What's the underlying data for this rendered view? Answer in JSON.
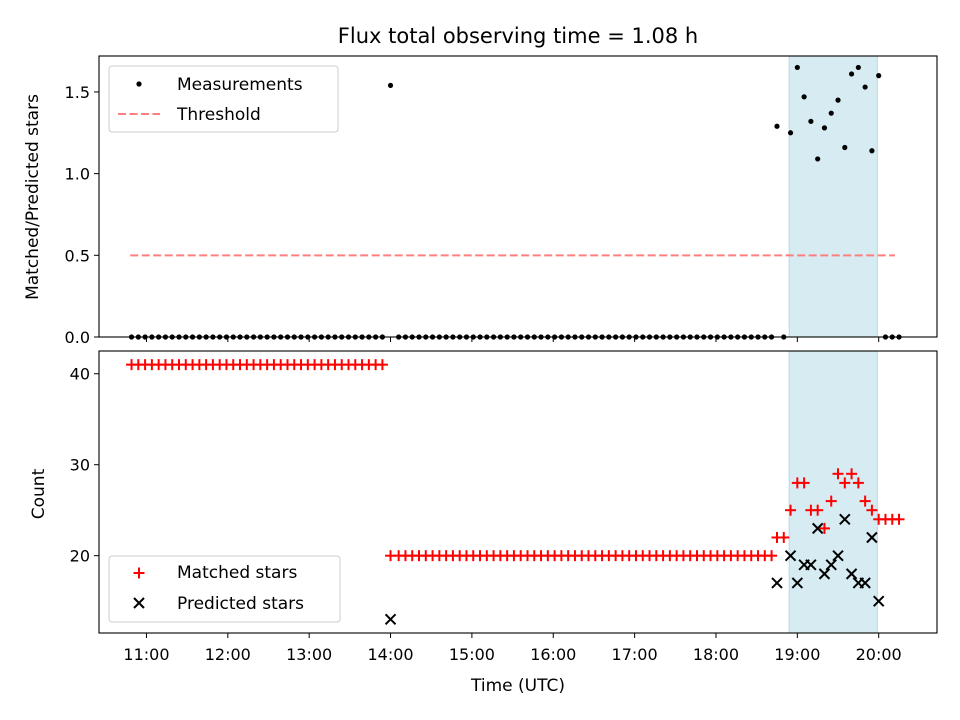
{
  "chart_data": [
    {
      "type": "scatter",
      "title": "Flux total observing time = 1.08 h",
      "ylabel": "Matched/Predicted stars",
      "xlabel": "",
      "xlim": [
        "10:25",
        "20:43"
      ],
      "ylim": [
        0,
        1.72
      ],
      "y_ticks": [
        "0.0",
        "0.5",
        "1.0",
        "1.5"
      ],
      "highlight_span": {
        "x": [
          "18:54",
          "19:59"
        ],
        "color": "#add8e6"
      },
      "legend": {
        "position": "upper left"
      },
      "threshold": {
        "name": "Threshold",
        "y": 0.5,
        "x": [
          "10:48",
          "20:12"
        ],
        "color": "#ff7f7f",
        "style": "dashed"
      },
      "series": [
        {
          "name": "Measurements",
          "color": "#000000",
          "marker": "dot",
          "points": [
            [
              "10:49",
              0
            ],
            [
              "10:54",
              0
            ],
            [
              "10:59",
              0
            ],
            [
              "11:04",
              0
            ],
            [
              "11:09",
              0
            ],
            [
              "11:14",
              0
            ],
            [
              "11:19",
              0
            ],
            [
              "11:24",
              0
            ],
            [
              "11:29",
              0
            ],
            [
              "11:34",
              0
            ],
            [
              "11:39",
              0
            ],
            [
              "11:44",
              0
            ],
            [
              "11:49",
              0
            ],
            [
              "11:54",
              0
            ],
            [
              "11:59",
              0
            ],
            [
              "12:04",
              0
            ],
            [
              "12:09",
              0
            ],
            [
              "12:14",
              0
            ],
            [
              "12:19",
              0
            ],
            [
              "12:24",
              0
            ],
            [
              "12:29",
              0
            ],
            [
              "12:34",
              0
            ],
            [
              "12:39",
              0
            ],
            [
              "12:44",
              0
            ],
            [
              "12:49",
              0
            ],
            [
              "12:54",
              0
            ],
            [
              "12:59",
              0
            ],
            [
              "13:04",
              0
            ],
            [
              "13:09",
              0
            ],
            [
              "13:14",
              0
            ],
            [
              "13:19",
              0
            ],
            [
              "13:24",
              0
            ],
            [
              "13:29",
              0
            ],
            [
              "13:34",
              0
            ],
            [
              "13:39",
              0
            ],
            [
              "13:44",
              0
            ],
            [
              "13:49",
              0
            ],
            [
              "13:54",
              0
            ],
            [
              "14:00",
              1.54
            ],
            [
              "14:06",
              0
            ],
            [
              "14:11",
              0
            ],
            [
              "14:16",
              0
            ],
            [
              "14:21",
              0
            ],
            [
              "14:26",
              0
            ],
            [
              "14:31",
              0
            ],
            [
              "14:36",
              0
            ],
            [
              "14:41",
              0
            ],
            [
              "14:46",
              0
            ],
            [
              "14:51",
              0
            ],
            [
              "14:56",
              0
            ],
            [
              "15:01",
              0
            ],
            [
              "15:06",
              0
            ],
            [
              "15:11",
              0
            ],
            [
              "15:16",
              0
            ],
            [
              "15:21",
              0
            ],
            [
              "15:26",
              0
            ],
            [
              "15:31",
              0
            ],
            [
              "15:36",
              0
            ],
            [
              "15:41",
              0
            ],
            [
              "15:46",
              0
            ],
            [
              "15:51",
              0
            ],
            [
              "15:56",
              0
            ],
            [
              "16:01",
              0
            ],
            [
              "16:06",
              0
            ],
            [
              "16:11",
              0
            ],
            [
              "16:16",
              0
            ],
            [
              "16:21",
              0
            ],
            [
              "16:26",
              0
            ],
            [
              "16:31",
              0
            ],
            [
              "16:36",
              0
            ],
            [
              "16:41",
              0
            ],
            [
              "16:46",
              0
            ],
            [
              "16:51",
              0
            ],
            [
              "16:56",
              0
            ],
            [
              "17:01",
              0
            ],
            [
              "17:06",
              0
            ],
            [
              "17:11",
              0
            ],
            [
              "17:16",
              0
            ],
            [
              "17:21",
              0
            ],
            [
              "17:26",
              0
            ],
            [
              "17:31",
              0
            ],
            [
              "17:36",
              0
            ],
            [
              "17:41",
              0
            ],
            [
              "17:46",
              0
            ],
            [
              "17:51",
              0
            ],
            [
              "17:56",
              0
            ],
            [
              "18:01",
              0
            ],
            [
              "18:06",
              0
            ],
            [
              "18:11",
              0
            ],
            [
              "18:16",
              0
            ],
            [
              "18:21",
              0
            ],
            [
              "18:26",
              0
            ],
            [
              "18:31",
              0
            ],
            [
              "18:36",
              0
            ],
            [
              "18:41",
              0
            ],
            [
              "18:45",
              1.29
            ],
            [
              "18:50",
              0
            ],
            [
              "18:55",
              1.25
            ],
            [
              "19:00",
              1.65
            ],
            [
              "19:05",
              1.47
            ],
            [
              "19:10",
              1.32
            ],
            [
              "19:15",
              1.09
            ],
            [
              "19:20",
              1.28
            ],
            [
              "19:25",
              1.37
            ],
            [
              "19:30",
              1.45
            ],
            [
              "19:35",
              1.16
            ],
            [
              "19:40",
              1.61
            ],
            [
              "19:45",
              1.65
            ],
            [
              "19:50",
              1.53
            ],
            [
              "19:55",
              1.14
            ],
            [
              "20:00",
              1.6
            ],
            [
              "20:05",
              0
            ],
            [
              "20:10",
              0
            ],
            [
              "20:15",
              0
            ]
          ]
        }
      ]
    },
    {
      "type": "scatter",
      "title": "",
      "xlabel": "Time (UTC)",
      "ylabel": "Count",
      "xlim": [
        "10:25",
        "20:43"
      ],
      "ylim": [
        11.5,
        42.5
      ],
      "x_ticks": [
        "11:00",
        "12:00",
        "13:00",
        "14:00",
        "15:00",
        "16:00",
        "17:00",
        "18:00",
        "19:00",
        "20:00"
      ],
      "y_ticks": [
        "20",
        "30",
        "40"
      ],
      "highlight_span": {
        "x": [
          "18:54",
          "19:59"
        ],
        "color": "#add8e6"
      },
      "legend": {
        "position": "lower left"
      },
      "series": [
        {
          "name": "Matched stars",
          "color": "#ff0000",
          "marker": "plus",
          "points": [
            [
              "10:49",
              41
            ],
            [
              "10:54",
              41
            ],
            [
              "10:59",
              41
            ],
            [
              "11:04",
              41
            ],
            [
              "11:09",
              41
            ],
            [
              "11:14",
              41
            ],
            [
              "11:19",
              41
            ],
            [
              "11:24",
              41
            ],
            [
              "11:29",
              41
            ],
            [
              "11:34",
              41
            ],
            [
              "11:39",
              41
            ],
            [
              "11:44",
              41
            ],
            [
              "11:49",
              41
            ],
            [
              "11:54",
              41
            ],
            [
              "11:59",
              41
            ],
            [
              "12:04",
              41
            ],
            [
              "12:09",
              41
            ],
            [
              "12:14",
              41
            ],
            [
              "12:19",
              41
            ],
            [
              "12:24",
              41
            ],
            [
              "12:29",
              41
            ],
            [
              "12:34",
              41
            ],
            [
              "12:39",
              41
            ],
            [
              "12:44",
              41
            ],
            [
              "12:49",
              41
            ],
            [
              "12:54",
              41
            ],
            [
              "12:59",
              41
            ],
            [
              "13:04",
              41
            ],
            [
              "13:09",
              41
            ],
            [
              "13:14",
              41
            ],
            [
              "13:19",
              41
            ],
            [
              "13:24",
              41
            ],
            [
              "13:29",
              41
            ],
            [
              "13:34",
              41
            ],
            [
              "13:39",
              41
            ],
            [
              "13:44",
              41
            ],
            [
              "13:49",
              41
            ],
            [
              "13:54",
              41
            ],
            [
              "14:00",
              20
            ],
            [
              "14:06",
              20
            ],
            [
              "14:11",
              20
            ],
            [
              "14:16",
              20
            ],
            [
              "14:21",
              20
            ],
            [
              "14:26",
              20
            ],
            [
              "14:31",
              20
            ],
            [
              "14:36",
              20
            ],
            [
              "14:41",
              20
            ],
            [
              "14:46",
              20
            ],
            [
              "14:51",
              20
            ],
            [
              "14:56",
              20
            ],
            [
              "15:01",
              20
            ],
            [
              "15:06",
              20
            ],
            [
              "15:11",
              20
            ],
            [
              "15:16",
              20
            ],
            [
              "15:21",
              20
            ],
            [
              "15:26",
              20
            ],
            [
              "15:31",
              20
            ],
            [
              "15:36",
              20
            ],
            [
              "15:41",
              20
            ],
            [
              "15:46",
              20
            ],
            [
              "15:51",
              20
            ],
            [
              "15:56",
              20
            ],
            [
              "16:01",
              20
            ],
            [
              "16:06",
              20
            ],
            [
              "16:11",
              20
            ],
            [
              "16:16",
              20
            ],
            [
              "16:21",
              20
            ],
            [
              "16:26",
              20
            ],
            [
              "16:31",
              20
            ],
            [
              "16:36",
              20
            ],
            [
              "16:41",
              20
            ],
            [
              "16:46",
              20
            ],
            [
              "16:51",
              20
            ],
            [
              "16:56",
              20
            ],
            [
              "17:01",
              20
            ],
            [
              "17:06",
              20
            ],
            [
              "17:11",
              20
            ],
            [
              "17:16",
              20
            ],
            [
              "17:21",
              20
            ],
            [
              "17:26",
              20
            ],
            [
              "17:31",
              20
            ],
            [
              "17:36",
              20
            ],
            [
              "17:41",
              20
            ],
            [
              "17:46",
              20
            ],
            [
              "17:51",
              20
            ],
            [
              "17:56",
              20
            ],
            [
              "18:01",
              20
            ],
            [
              "18:06",
              20
            ],
            [
              "18:11",
              20
            ],
            [
              "18:16",
              20
            ],
            [
              "18:21",
              20
            ],
            [
              "18:26",
              20
            ],
            [
              "18:31",
              20
            ],
            [
              "18:36",
              20
            ],
            [
              "18:41",
              20
            ],
            [
              "18:45",
              22
            ],
            [
              "18:50",
              22
            ],
            [
              "18:55",
              25
            ],
            [
              "19:00",
              28
            ],
            [
              "19:05",
              28
            ],
            [
              "19:10",
              25
            ],
            [
              "19:15",
              25
            ],
            [
              "19:20",
              23
            ],
            [
              "19:25",
              26
            ],
            [
              "19:30",
              29
            ],
            [
              "19:35",
              28
            ],
            [
              "19:40",
              29
            ],
            [
              "19:45",
              28
            ],
            [
              "19:50",
              26
            ],
            [
              "19:55",
              25
            ],
            [
              "20:00",
              24
            ],
            [
              "20:05",
              24
            ],
            [
              "20:10",
              24
            ],
            [
              "20:15",
              24
            ]
          ]
        },
        {
          "name": "Predicted stars",
          "color": "#000000",
          "marker": "x",
          "points": [
            [
              "14:00",
              13
            ],
            [
              "18:45",
              17
            ],
            [
              "18:55",
              20
            ],
            [
              "19:00",
              17
            ],
            [
              "19:05",
              19
            ],
            [
              "19:10",
              19
            ],
            [
              "19:15",
              23
            ],
            [
              "19:20",
              18
            ],
            [
              "19:25",
              19
            ],
            [
              "19:30",
              20
            ],
            [
              "19:35",
              24
            ],
            [
              "19:40",
              18
            ],
            [
              "19:45",
              17
            ],
            [
              "19:50",
              17
            ],
            [
              "19:55",
              22
            ],
            [
              "20:00",
              15
            ]
          ]
        }
      ]
    }
  ]
}
